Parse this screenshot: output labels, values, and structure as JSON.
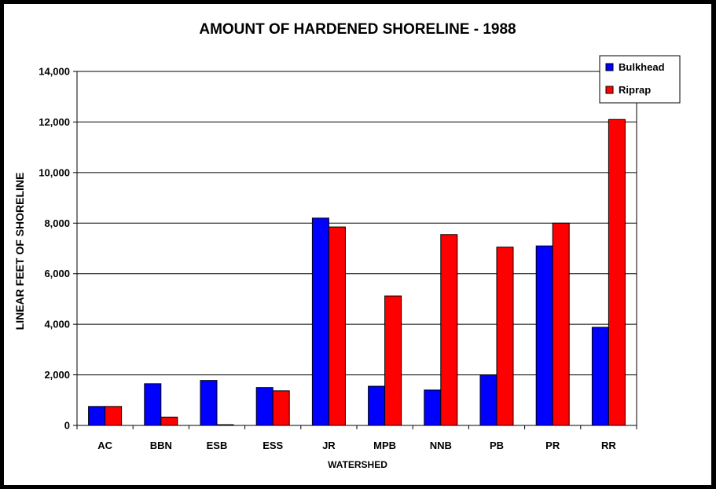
{
  "chart_data": {
    "type": "bar",
    "title": "AMOUNT OF HARDENED SHORELINE - 1988",
    "xlabel": "WATERSHED",
    "ylabel": "LINEAR FEET OF SHORELINE",
    "categories": [
      "AC",
      "BBN",
      "ESB",
      "ESS",
      "JR",
      "MPB",
      "NNB",
      "PB",
      "PR",
      "RR"
    ],
    "series": [
      {
        "name": "Bulkhead",
        "color": "#0000FF",
        "values": [
          750,
          1650,
          1780,
          1500,
          8200,
          1550,
          1400,
          2000,
          7100,
          3880
        ]
      },
      {
        "name": "Riprap",
        "color": "#FF0000",
        "values": [
          750,
          330,
          30,
          1370,
          7850,
          5120,
          7550,
          7050,
          8000,
          12100
        ]
      }
    ],
    "ylim": [
      0,
      14000
    ],
    "yticks": [
      "0",
      "2,000",
      "4,000",
      "6,000",
      "8,000",
      "10,000",
      "12,000",
      "14,000"
    ],
    "grid": true,
    "legend_position": "top-right"
  }
}
